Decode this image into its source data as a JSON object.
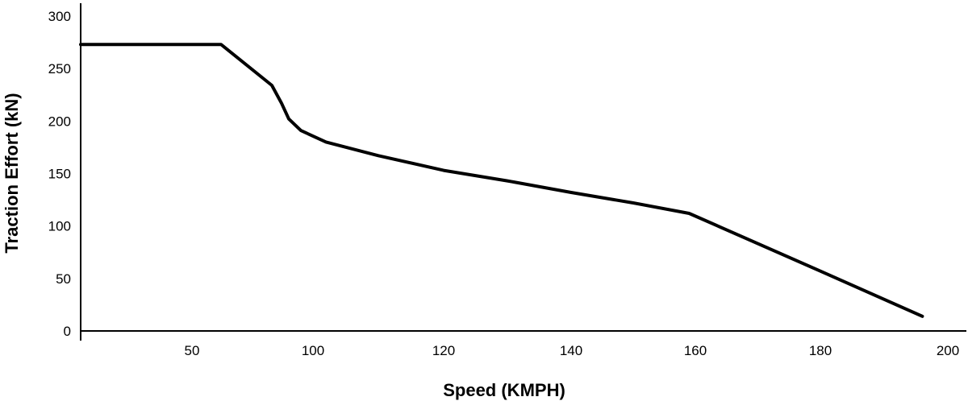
{
  "chart_data": {
    "type": "line",
    "title": "",
    "xlabel": "Speed (KMPH)",
    "ylabel": "Traction Effort (kN)",
    "x_ticks": [
      "50",
      "100",
      "120",
      "140",
      "160",
      "180",
      "200"
    ],
    "y_ticks": [
      "0",
      "50",
      "100",
      "150",
      "200",
      "250",
      "300"
    ],
    "ylim": [
      0,
      300
    ],
    "grid": false,
    "legend": "none",
    "line_color": "#000000",
    "series": [
      {
        "points": [
          {
            "x": 30,
            "y": 273
          },
          {
            "x": 62,
            "y": 273
          },
          {
            "x": 83,
            "y": 234
          },
          {
            "x": 87,
            "y": 217
          },
          {
            "x": 90,
            "y": 202
          },
          {
            "x": 95,
            "y": 191
          },
          {
            "x": 102,
            "y": 180
          },
          {
            "x": 110,
            "y": 167
          },
          {
            "x": 120,
            "y": 153
          },
          {
            "x": 130,
            "y": 143
          },
          {
            "x": 140,
            "y": 132
          },
          {
            "x": 150,
            "y": 122
          },
          {
            "x": 159,
            "y": 112
          },
          {
            "x": 180,
            "y": 57
          },
          {
            "x": 196,
            "y": 14
          }
        ]
      }
    ]
  }
}
